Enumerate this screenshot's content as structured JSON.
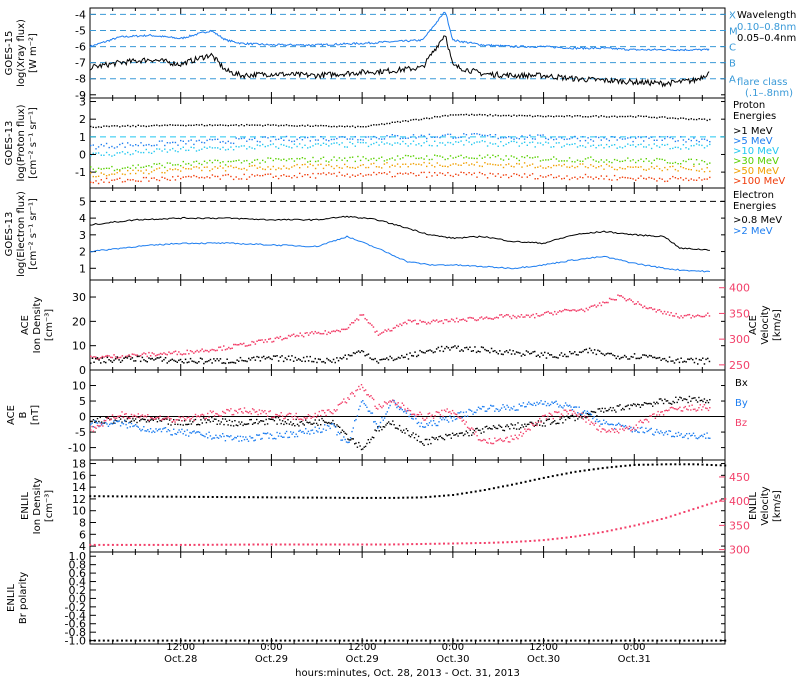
{
  "colors": {
    "black": "#000000",
    "blue": "#1e7ef0",
    "pink": "#f2406a",
    "cyan": "#22c8f0",
    "green": "#5ad000",
    "yellow": "#d8e000",
    "orange": "#f0a000",
    "red": "#f03c0a",
    "dash": "#3a9ad8"
  },
  "xaxis": {
    "title": "hours:minutes, Oct. 28, 2013 - Oct. 31, 2013",
    "ticks": [
      {
        "hours": 12,
        "time": "12:00",
        "date": "Oct.28"
      },
      {
        "hours": 24,
        "time": "0:00",
        "date": "Oct.29"
      },
      {
        "hours": 36,
        "time": "12:00",
        "date": "Oct.29"
      },
      {
        "hours": 48,
        "time": "0:00",
        "date": "Oct.30"
      },
      {
        "hours": 60,
        "time": "12:00",
        "date": "Oct.30"
      },
      {
        "hours": 72,
        "time": "0:00",
        "date": "Oct.31"
      }
    ],
    "range_hours": [
      0,
      84
    ]
  },
  "panels": {
    "xray": {
      "ylabel": [
        "GOES-15",
        "log(Xray flux)",
        "[W m⁻²]"
      ],
      "yticks": [
        "-4",
        "-5",
        "-6",
        "-7",
        "-8",
        "-9"
      ],
      "ylim": [
        -9.2,
        -3.6
      ],
      "class_letters": [
        "X",
        "M",
        "C",
        "B",
        "A"
      ],
      "legend": [
        "Wavelength",
        "0.10–0.8nm",
        "0.05–0.4nm",
        "flare class",
        "(.1–.8nm)"
      ]
    },
    "proton": {
      "ylabel": [
        "GOES-13",
        "log(Proton flux)",
        "[cm⁻² s⁻¹ sr⁻¹]"
      ],
      "yticks": [
        "3",
        "2",
        "1",
        "0",
        "-1"
      ],
      "ylim": [
        -1.9,
        3.2
      ],
      "legend_title": [
        "Proton",
        "Energies"
      ],
      "legend": [
        ">1 MeV",
        ">5 MeV",
        ">10 MeV",
        ">30 MeV",
        ">50 MeV",
        ">100 MeV"
      ]
    },
    "electron": {
      "ylabel": [
        "GOES-13",
        "log(Electron flux)",
        "[cm⁻² s⁻¹ sr⁻¹]"
      ],
      "yticks": [
        "5",
        "4",
        "3",
        "2",
        "1"
      ],
      "ylim": [
        0.3,
        5.8
      ],
      "legend_title": [
        "Electron",
        "Energies"
      ],
      "legend": [
        ">0.8 MeV",
        ">2 MeV"
      ]
    },
    "ace_plasma": {
      "ylabel": [
        "ACE",
        "Ion Density",
        "[cm⁻³]"
      ],
      "yticks": [
        "30",
        "20",
        "10",
        "0"
      ],
      "ylim": [
        0,
        37
      ],
      "ylabel_right": [
        "ACE",
        "Velocity",
        "[km/s]"
      ],
      "yticks_right": [
        "400",
        "350",
        "300",
        "250"
      ],
      "ylim_right": [
        240,
        415
      ]
    },
    "ace_mag": {
      "ylabel": [
        "ACE",
        "B",
        "[nT]"
      ],
      "yticks": [
        "10",
        "5",
        "0",
        "-5",
        "-10"
      ],
      "ylim": [
        -14,
        15
      ],
      "legend": [
        "Bx",
        "By",
        "Bz"
      ]
    },
    "enlil_plasma": {
      "ylabel": [
        "ENLIL",
        "Ion Density",
        "[cm⁻³]"
      ],
      "yticks": [
        "18",
        "16",
        "14",
        "12",
        "10",
        "8",
        "6",
        "4"
      ],
      "ylim": [
        3,
        18.6
      ],
      "ylabel_right": [
        "ENLIL",
        "Velocity",
        "[km/s]"
      ],
      "yticks_right": [
        "450",
        "400",
        "350",
        "300"
      ],
      "ylim_right": [
        295,
        485
      ]
    },
    "enlil_polarity": {
      "ylabel": [
        "ENLIL",
        "Br polarity"
      ],
      "yticks": [
        "1.0",
        "0.8",
        "0.6",
        "0.4",
        "0.2",
        "0.0",
        "-0.2",
        "-0.4",
        "-0.6",
        "-0.8",
        "-1.0"
      ],
      "ylim": [
        -1.08,
        1.1
      ]
    }
  },
  "chart_data": [
    {
      "type": "line",
      "ylabel": "log(Xray flux)",
      "x_hours": [
        0,
        4,
        8,
        12,
        16,
        18,
        20,
        24,
        30,
        36,
        40,
        44,
        47,
        48,
        52,
        56,
        60,
        64,
        68,
        72,
        76,
        80,
        82
      ],
      "series": [
        {
          "name": "0.10–0.8nm",
          "values": [
            -6.0,
            -5.4,
            -5.3,
            -5.5,
            -5.0,
            -5.6,
            -5.8,
            -5.9,
            -5.9,
            -5.8,
            -5.7,
            -5.6,
            -3.8,
            -5.6,
            -5.9,
            -6.0,
            -6.0,
            -6.1,
            -6.1,
            -6.2,
            -6.2,
            -6.2,
            -6.2
          ]
        },
        {
          "name": "0.05–0.4nm",
          "values": [
            -7.3,
            -7.0,
            -6.8,
            -7.1,
            -6.5,
            -7.5,
            -7.8,
            -7.7,
            -7.8,
            -7.6,
            -7.5,
            -7.3,
            -5.2,
            -7.2,
            -7.7,
            -7.8,
            -7.8,
            -8.0,
            -8.1,
            -8.2,
            -8.3,
            -8.1,
            -7.6
          ]
        }
      ]
    },
    {
      "type": "scatter",
      "ylabel": "log(Proton flux)",
      "x_hours": [
        0,
        12,
        24,
        36,
        48,
        60,
        72,
        82
      ],
      "series": [
        {
          "name": ">1 MeV",
          "values": [
            1.6,
            1.7,
            1.7,
            1.6,
            2.3,
            2.2,
            2.2,
            2.0
          ]
        },
        {
          "name": ">5 MeV",
          "values": [
            0.5,
            0.7,
            0.9,
            1.0,
            1.1,
            1.0,
            0.9,
            0.9
          ]
        },
        {
          "name": ">10 MeV",
          "values": [
            0.0,
            0.3,
            0.5,
            0.6,
            0.7,
            0.6,
            0.5,
            0.5
          ]
        },
        {
          "name": ">30 MeV",
          "values": [
            -0.8,
            -0.5,
            -0.3,
            -0.2,
            -0.1,
            -0.2,
            -0.3,
            -0.4
          ]
        },
        {
          "name": ">50 MeV",
          "values": [
            -1.1,
            -0.8,
            -0.7,
            -0.6,
            -0.5,
            -0.6,
            -0.7,
            -0.8
          ]
        },
        {
          "name": ">100 MeV",
          "values": [
            -1.5,
            -1.3,
            -1.2,
            -1.1,
            -1.1,
            -1.2,
            -1.3,
            -1.4
          ]
        }
      ]
    },
    {
      "type": "line",
      "ylabel": "log(Electron flux)",
      "x_hours": [
        0,
        6,
        12,
        18,
        24,
        30,
        34,
        38,
        42,
        45,
        48,
        52,
        56,
        60,
        64,
        68,
        72,
        76,
        78,
        82
      ],
      "series": [
        {
          "name": ">0.8 MeV",
          "values": [
            3.6,
            3.9,
            4.0,
            4.0,
            3.9,
            3.9,
            4.1,
            3.9,
            3.4,
            3.0,
            2.8,
            2.9,
            2.6,
            2.5,
            3.0,
            3.2,
            3.0,
            2.9,
            2.2,
            2.1
          ]
        },
        {
          "name": ">2 MeV",
          "values": [
            2.0,
            2.3,
            2.5,
            2.5,
            2.4,
            2.3,
            2.9,
            2.2,
            1.4,
            1.2,
            1.2,
            1.1,
            1.0,
            1.2,
            1.5,
            1.7,
            1.3,
            1.0,
            0.9,
            0.8
          ]
        }
      ]
    },
    {
      "type": "scatter",
      "ylabel": "Ion Density / Velocity",
      "x_hours": [
        0,
        6,
        12,
        18,
        24,
        28,
        32,
        34,
        36,
        38,
        42,
        46,
        50,
        54,
        58,
        62,
        66,
        70,
        74,
        78,
        82
      ],
      "series": [
        {
          "name": "ACE Ion Density",
          "values": [
            4,
            5,
            4,
            4,
            5,
            5,
            4,
            6,
            8,
            4,
            6,
            9,
            9,
            8,
            7,
            6,
            8,
            6,
            6,
            4,
            4
          ]
        },
        {
          "name": "ACE Velocity",
          "values": [
            265,
            270,
            275,
            285,
            300,
            310,
            315,
            325,
            350,
            310,
            335,
            335,
            340,
            345,
            345,
            355,
            360,
            385,
            360,
            345,
            350
          ]
        }
      ]
    },
    {
      "type": "scatter",
      "ylabel": "B [nT]",
      "x_hours": [
        0,
        4,
        8,
        12,
        16,
        20,
        24,
        28,
        32,
        34,
        36,
        38,
        40,
        44,
        48,
        52,
        56,
        60,
        64,
        68,
        72,
        76,
        80,
        82
      ],
      "series": [
        {
          "name": "Bx",
          "values": [
            -1,
            -1,
            -1,
            -2,
            -1,
            -2,
            -1,
            -2,
            -1,
            -6,
            -10,
            -4,
            -2,
            -8,
            -6,
            -4,
            -3,
            -2,
            0,
            2,
            4,
            5,
            6,
            5
          ]
        },
        {
          "name": "By",
          "values": [
            -2,
            -2,
            -4,
            -5,
            -6,
            -7,
            -6,
            -5,
            -3,
            -9,
            6,
            -3,
            5,
            -3,
            0,
            3,
            3,
            5,
            3,
            -2,
            -4,
            -5,
            -6,
            -6
          ]
        },
        {
          "name": "Bz",
          "values": [
            -4,
            1,
            0,
            -1,
            1,
            2,
            1,
            0,
            2,
            6,
            10,
            3,
            5,
            0,
            2,
            -8,
            -7,
            0,
            2,
            -5,
            -3,
            2,
            3,
            3
          ]
        }
      ]
    },
    {
      "type": "line",
      "ylabel": "Ion Density / Velocity",
      "x_hours": [
        0,
        12,
        24,
        36,
        40,
        44,
        48,
        52,
        56,
        60,
        64,
        68,
        72,
        76,
        80,
        84
      ],
      "series": [
        {
          "name": "ENLIL Ion Density",
          "values": [
            12.5,
            12.4,
            12.3,
            12.2,
            12.2,
            12.3,
            12.7,
            13.5,
            14.5,
            15.6,
            16.6,
            17.3,
            17.8,
            17.9,
            17.9,
            17.7
          ]
        },
        {
          "name": "ENLIL Velocity",
          "values": [
            310,
            310,
            311,
            311,
            311,
            312,
            313,
            314,
            316,
            320,
            327,
            337,
            350,
            365,
            385,
            405
          ]
        }
      ]
    },
    {
      "type": "line",
      "ylabel": "Br polarity",
      "x_hours": [
        0,
        84
      ],
      "series": [
        {
          "name": "ENLIL Br polarity",
          "values": [
            -1.0,
            -1.0
          ]
        }
      ]
    }
  ]
}
